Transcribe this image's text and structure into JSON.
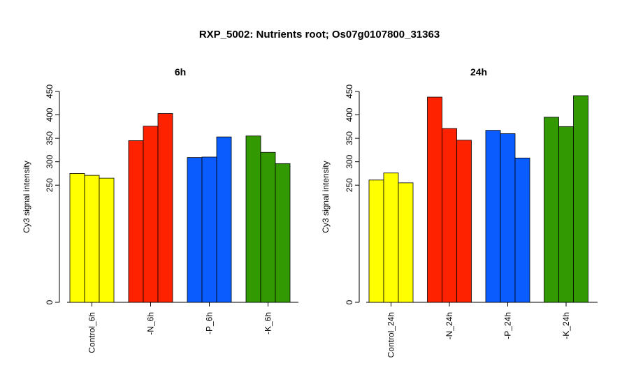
{
  "figure_title": "RXP_5002: Nutrients root; Os07g0107800_31363",
  "colors": {
    "control": "#ffff00",
    "nitrogen": "#ff2200",
    "phosphorus": "#0a5cff",
    "potassium": "#339900"
  },
  "chart_data": [
    {
      "type": "bar",
      "title": "6h",
      "ylabel": "Cy3 signal intensity",
      "ylim": [
        0,
        450
      ],
      "yticks": [
        0,
        250,
        300,
        350,
        400,
        450
      ],
      "categories": [
        "Control_6h",
        "-N_6h",
        "-P_6h",
        "-K_6h"
      ],
      "bar_colors": [
        "#ffff00",
        "#ff2200",
        "#0a5cff",
        "#339900"
      ],
      "values": [
        [
          275,
          271,
          265
        ],
        [
          345,
          376,
          403
        ],
        [
          309,
          310,
          353
        ],
        [
          355,
          320,
          296
        ]
      ]
    },
    {
      "type": "bar",
      "title": "24h",
      "ylabel": "Cy3 signal intensity",
      "ylim": [
        0,
        450
      ],
      "yticks": [
        0,
        250,
        300,
        350,
        400,
        450
      ],
      "categories": [
        "Control_24h",
        "-N_24h",
        "-P_24h",
        "-K_24h"
      ],
      "bar_colors": [
        "#ffff00",
        "#ff2200",
        "#0a5cff",
        "#339900"
      ],
      "values": [
        [
          261,
          276,
          255
        ],
        [
          438,
          371,
          346
        ],
        [
          367,
          360,
          308
        ],
        [
          395,
          375,
          441
        ]
      ]
    }
  ]
}
